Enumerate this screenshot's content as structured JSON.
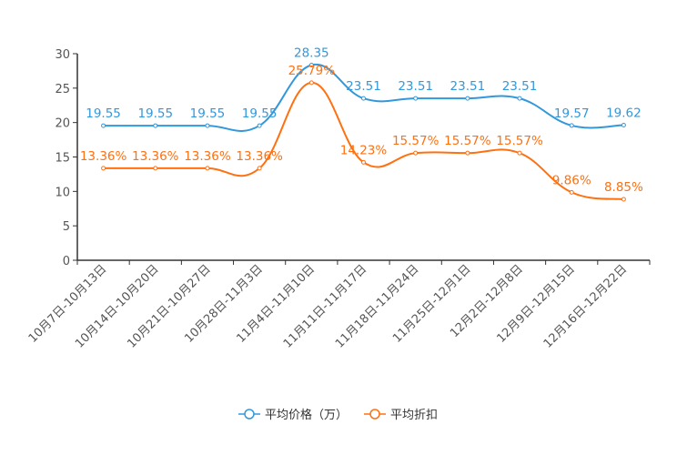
{
  "chart_data": {
    "type": "line",
    "title": "",
    "xlabel": "",
    "ylabel": "",
    "ylim": [
      0,
      30
    ],
    "yticks": [
      0,
      5,
      10,
      15,
      20,
      25,
      30
    ],
    "grid": false,
    "legend_position": "bottom-center",
    "categories": [
      "10月7日-10月13日",
      "10月14日-10月20日",
      "10月21日-10月27日",
      "10月28日-11月3日",
      "11月4日-11月10日",
      "11月11日-11月17日",
      "11月18日-11月24日",
      "11月25日-12月1日",
      "12月2日-12月8日",
      "12月9日-12月15日",
      "12月16日-12月22日"
    ],
    "series": [
      {
        "name": "平均价格（万）",
        "color": "#3398db",
        "values": [
          19.55,
          19.55,
          19.55,
          19.55,
          28.35,
          23.51,
          23.51,
          23.51,
          23.51,
          19.57,
          19.62
        ],
        "labels": [
          "19.55",
          "19.55",
          "19.55",
          "19.55",
          "28.35",
          "23.51",
          "23.51",
          "23.51",
          "23.51",
          "19.57",
          "19.62"
        ]
      },
      {
        "name": "平均折扣",
        "color": "#ff7010",
        "values": [
          13.36,
          13.36,
          13.36,
          13.36,
          25.79,
          14.23,
          15.57,
          15.57,
          15.57,
          9.86,
          8.85
        ],
        "labels": [
          "13.36%",
          "13.36%",
          "13.36%",
          "13.36%",
          "25.79%",
          "14.23%",
          "15.57%",
          "15.57%",
          "15.57%",
          "9.86%",
          "8.85%"
        ]
      }
    ]
  }
}
